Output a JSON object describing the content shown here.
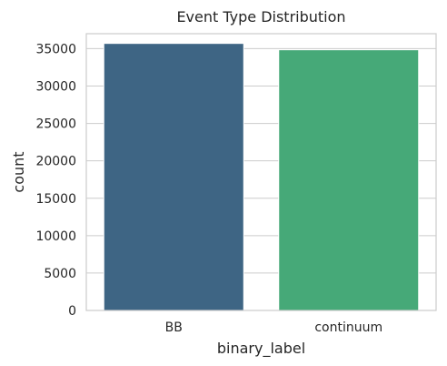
{
  "chart_data": {
    "type": "bar",
    "title": "Event Type Distribution",
    "xlabel": "binary_label",
    "ylabel": "count",
    "categories": [
      "BB",
      "continuum"
    ],
    "values": [
      35700,
      34850
    ],
    "colors": [
      "#3e6584",
      "#46a978"
    ],
    "ylim": [
      0,
      37000
    ],
    "yticks": [
      0,
      5000,
      10000,
      15000,
      20000,
      25000,
      30000,
      35000
    ],
    "grid": "horizontal"
  }
}
